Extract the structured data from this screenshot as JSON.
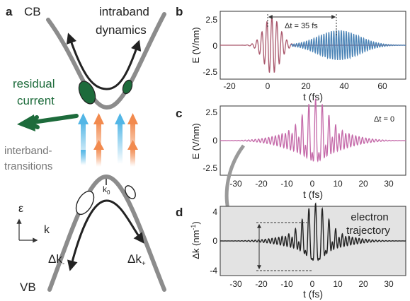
{
  "panel_labels": {
    "a": "a",
    "b": "b",
    "c": "c",
    "d": "d"
  },
  "panel_a": {
    "cb_label": "CB",
    "vb_label": "VB",
    "intraband_line1": "intraband",
    "intraband_line2": "dynamics",
    "residual_line1": "residual",
    "residual_line2": "current",
    "interband_line1": "interband-",
    "interband_line2": "transitions",
    "k0_main": "k",
    "k0_sub": "0",
    "epsilon_label": "ε",
    "k_axis_label": "k",
    "dk_minus_main": "Δk",
    "dk_minus_sub": "-",
    "dk_plus_main": "Δk",
    "dk_plus_sub": "+",
    "colors": {
      "band": "#8c8c8c",
      "residual": "#1d6b3b",
      "arrow_blue": "#52b6e6",
      "arrow_orange": "#f28a4e"
    }
  },
  "panel_b": {
    "ylabel": "E (V/nm)",
    "xlabel": "t (fs)",
    "annotation": "Δt = 35 fs",
    "xticks": [
      "-20",
      "0",
      "20",
      "40",
      "60"
    ],
    "yticks": [
      "2.5",
      "0",
      "-2.5"
    ],
    "colors": {
      "pulse1": "#a9566b",
      "pulse2": "#4a83b6"
    }
  },
  "panel_c": {
    "ylabel": "E (V/nm)",
    "xlabel": "t (fs)",
    "annotation": "Δt = 0",
    "xticks": [
      "-30",
      "-20",
      "-10",
      "0",
      "10",
      "20",
      "30"
    ],
    "yticks": [
      "2.5",
      "0",
      "-2.5"
    ],
    "colors": {
      "pulse": "#c468a8"
    }
  },
  "panel_d": {
    "ylabel_main": "Δk (nm",
    "ylabel_sup": "-1",
    "ylabel_close": ")",
    "xlabel": "t (fs)",
    "annotation_line1": "electron",
    "annotation_line2": "trajectory",
    "xticks": [
      "-30",
      "-20",
      "-10",
      "0",
      "10",
      "20",
      "30"
    ],
    "yticks": [
      "4",
      "0",
      "-4"
    ],
    "colors": {
      "background": "#e3e3e3",
      "trace": "#222222"
    }
  },
  "chart_data": [
    {
      "type": "line",
      "panel": "b",
      "xlabel": "t (fs)",
      "ylabel": "E (V/nm)",
      "xlim": [
        -27,
        70
      ],
      "ylim": [
        -3.1,
        3.1
      ],
      "series": [
        {
          "kind": "gaussian-pulse",
          "center": 0,
          "fwhm": 10,
          "amplitude": 2.6,
          "period": 2.6,
          "color": "#a9566b"
        },
        {
          "kind": "gaussian-pulse",
          "center": 35,
          "fwhm": 25,
          "amplitude": 1.35,
          "period": 1.3,
          "color": "#4a83b6"
        }
      ]
    },
    {
      "type": "line",
      "panel": "c",
      "xlabel": "t (fs)",
      "ylabel": "E (V/nm)",
      "xlim": [
        -37,
        35
      ],
      "ylim": [
        -3.3,
        3.3
      ],
      "series": [
        {
          "kind": "sum-of-pulses",
          "amplitude": 3.0,
          "color": "#c468a8"
        }
      ]
    },
    {
      "type": "line",
      "panel": "d",
      "xlabel": "t (fs)",
      "ylabel": "Δk (nm-1)",
      "xlim": [
        -37,
        35
      ],
      "ylim": [
        -4.5,
        4.5
      ],
      "series": [
        {
          "kind": "trajectory",
          "amplitude": 3.8,
          "color": "#222222"
        }
      ]
    }
  ]
}
